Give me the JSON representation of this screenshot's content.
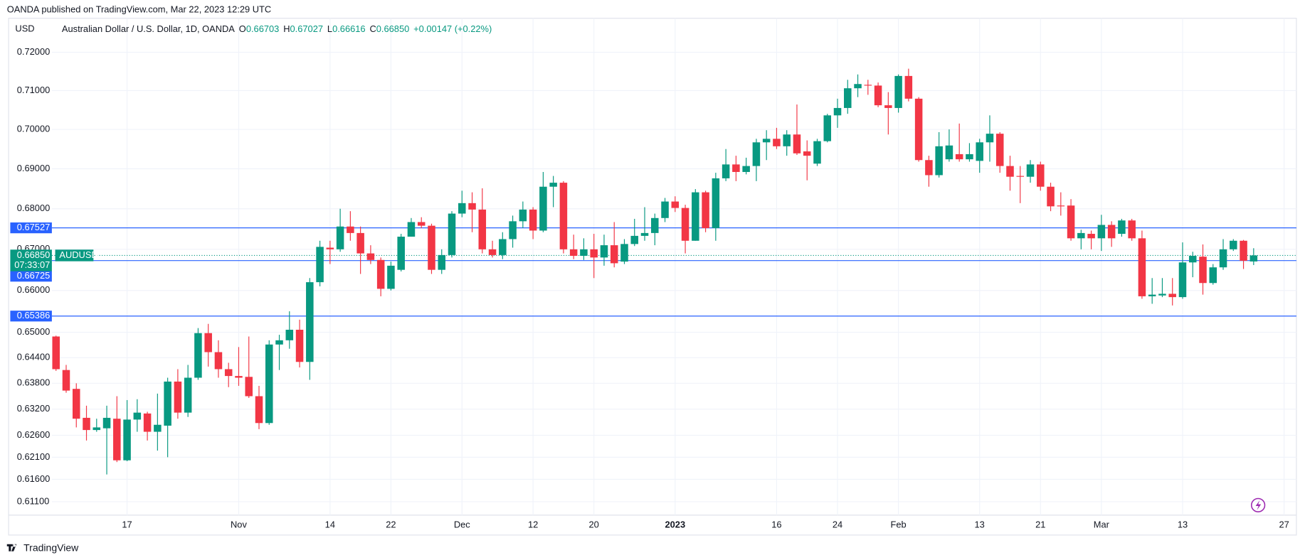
{
  "header": {
    "text": "OANDA published on TradingView.com, Mar 22, 2023 12:29 UTC"
  },
  "chart_data": {
    "type": "candlestick",
    "currency": "USD",
    "legend": {
      "title": "Australian Dollar / U.S. Dollar, 1D, OANDA",
      "ohlc": [
        {
          "key": "O",
          "value": "0.66703"
        },
        {
          "key": "H",
          "value": "0.67027"
        },
        {
          "key": "L",
          "value": "0.66616"
        },
        {
          "key": "C",
          "value": "0.66850"
        }
      ],
      "change": "+0.00147 (+0.22%)"
    },
    "categories": [
      null,
      null,
      null,
      null,
      null,
      null,
      null,
      "17",
      null,
      null,
      null,
      null,
      null,
      null,
      null,
      null,
      null,
      null,
      "Nov",
      null,
      null,
      null,
      null,
      null,
      null,
      null,
      null,
      "14",
      null,
      null,
      null,
      null,
      null,
      "22",
      null,
      null,
      null,
      null,
      null,
      null,
      "Dec",
      null,
      null,
      null,
      null,
      null,
      null,
      "12",
      null,
      null,
      null,
      null,
      null,
      "20",
      null,
      null,
      null,
      null,
      null,
      null,
      null,
      "2023",
      null,
      null,
      null,
      null,
      null,
      null,
      null,
      null,
      null,
      "16",
      null,
      null,
      null,
      null,
      null,
      "24",
      null,
      null,
      null,
      null,
      null,
      "Feb",
      null,
      null,
      null,
      null,
      null,
      null,
      null,
      "13",
      null,
      null,
      null,
      null,
      null,
      "21",
      null,
      null,
      null,
      null,
      null,
      "Mar",
      null,
      null,
      null,
      null,
      null,
      null,
      null,
      "13",
      null,
      null,
      null,
      null,
      null,
      null,
      null
    ],
    "future_categories": [
      null,
      null,
      "27"
    ],
    "open": [
      0.649,
      0.6411,
      0.6367,
      0.63,
      0.6272,
      0.6276,
      0.6298,
      0.6203,
      0.6296,
      0.631,
      0.6268,
      0.6282,
      0.6384,
      0.6312,
      0.6393,
      0.6498,
      0.6453,
      0.6413,
      0.6397,
      0.6395,
      0.635,
      0.6288,
      0.6471,
      0.6481,
      0.6506,
      0.643,
      0.662,
      0.6704,
      0.67,
      0.6756,
      0.674,
      0.669,
      0.6674,
      0.6604,
      0.665,
      0.6731,
      0.6767,
      0.6758,
      0.665,
      0.6686,
      0.6788,
      0.6814,
      0.6798,
      0.67,
      0.6686,
      0.6725,
      0.6769,
      0.6798,
      0.6746,
      0.6855,
      0.6865,
      0.67,
      0.6684,
      0.67,
      0.668,
      0.671,
      0.667,
      0.6713,
      0.6733,
      0.674,
      0.6777,
      0.6818,
      0.6802,
      0.6721,
      0.6841,
      0.6752,
      0.6876,
      0.6911,
      0.6892,
      0.6907,
      0.6967,
      0.6976,
      0.6957,
      0.6987,
      0.6944,
      0.6913,
      0.697,
      0.7036,
      0.7055,
      0.7106,
      0.7115,
      0.7113,
      0.7062,
      0.7055,
      0.7138,
      0.7079,
      0.6922,
      0.6884,
      0.6924,
      0.6937,
      0.6924,
      0.692,
      0.6967,
      0.6989,
      0.6907,
      0.6882,
      0.688,
      0.6911,
      0.6855,
      0.6808,
      0.6808,
      0.6727,
      0.6738,
      0.6727,
      0.676,
      0.6738,
      0.6771,
      0.6727,
      0.6586,
      0.6588,
      0.6592,
      0.6584,
      0.6668,
      0.6682,
      0.6618,
      0.6656,
      0.67,
      0.6721,
      0.66703
    ],
    "high": [
      0.6492,
      0.6423,
      0.638,
      0.6328,
      0.6298,
      0.6328,
      0.635,
      0.6341,
      0.6343,
      0.6314,
      0.6356,
      0.6393,
      0.6413,
      0.6423,
      0.651,
      0.652,
      0.6481,
      0.6428,
      0.6465,
      0.649,
      0.6374,
      0.6481,
      0.6494,
      0.655,
      0.653,
      0.663,
      0.6721,
      0.6721,
      0.68,
      0.6794,
      0.6756,
      0.671,
      0.668,
      0.667,
      0.6738,
      0.6777,
      0.6779,
      0.6763,
      0.67,
      0.6794,
      0.6845,
      0.6841,
      0.6851,
      0.6721,
      0.6742,
      0.6783,
      0.6818,
      0.6804,
      0.6892,
      0.6882,
      0.6869,
      0.6736,
      0.6727,
      0.6738,
      0.6736,
      0.6767,
      0.6725,
      0.6775,
      0.6804,
      0.6788,
      0.6827,
      0.6831,
      0.681,
      0.6849,
      0.6845,
      0.689,
      0.695,
      0.6933,
      0.6928,
      0.6976,
      0.6998,
      0.7004,
      0.6998,
      0.7064,
      0.6972,
      0.6976,
      0.704,
      0.7079,
      0.7128,
      0.7142,
      0.7128,
      0.7121,
      0.7096,
      0.7142,
      0.7157,
      0.7083,
      0.6933,
      0.6993,
      0.7,
      0.7015,
      0.6965,
      0.6976,
      0.7036,
      0.6993,
      0.6933,
      0.6907,
      0.6922,
      0.6918,
      0.6865,
      0.6841,
      0.6824,
      0.6748,
      0.6746,
      0.6785,
      0.6769,
      0.6775,
      0.6775,
      0.6746,
      0.663,
      0.663,
      0.663,
      0.6717,
      0.6694,
      0.6712,
      0.6664,
      0.6725,
      0.6725,
      0.6723,
      0.67027
    ],
    "low": [
      0.6409,
      0.6358,
      0.6278,
      0.6248,
      0.6268,
      0.6171,
      0.6199,
      0.6201,
      0.6268,
      0.6248,
      0.6225,
      0.621,
      0.6298,
      0.6302,
      0.6388,
      0.6419,
      0.6393,
      0.6371,
      0.6374,
      0.6346,
      0.6274,
      0.6284,
      0.6411,
      0.6461,
      0.6417,
      0.6388,
      0.661,
      0.6664,
      0.6694,
      0.6721,
      0.664,
      0.6664,
      0.6586,
      0.66,
      0.6646,
      0.6731,
      0.6752,
      0.664,
      0.664,
      0.668,
      0.6779,
      0.6742,
      0.669,
      0.668,
      0.6676,
      0.6704,
      0.6752,
      0.6725,
      0.6742,
      0.6804,
      0.669,
      0.6676,
      0.6674,
      0.663,
      0.666,
      0.6656,
      0.6664,
      0.6708,
      0.6721,
      0.671,
      0.6767,
      0.6792,
      0.669,
      0.6721,
      0.6742,
      0.6721,
      0.6869,
      0.6869,
      0.6886,
      0.6869,
      0.6922,
      0.695,
      0.6933,
      0.6935,
      0.6871,
      0.6907,
      0.6967,
      0.7004,
      0.704,
      0.7083,
      0.7089,
      0.7057,
      0.6987,
      0.7043,
      0.7072,
      0.6918,
      0.6855,
      0.6878,
      0.6918,
      0.6918,
      0.6918,
      0.689,
      0.6918,
      0.689,
      0.6845,
      0.6814,
      0.6865,
      0.6845,
      0.6794,
      0.6783,
      0.6721,
      0.67,
      0.67,
      0.6696,
      0.6706,
      0.6731,
      0.6721,
      0.658,
      0.6568,
      0.6584,
      0.6564,
      0.658,
      0.6632,
      0.659,
      0.6614,
      0.665,
      0.6696,
      0.6652,
      0.66616
    ],
    "close": [
      0.6413,
      0.6363,
      0.6298,
      0.6272,
      0.6278,
      0.63,
      0.6203,
      0.6296,
      0.6312,
      0.6268,
      0.6284,
      0.6384,
      0.6312,
      0.6393,
      0.6498,
      0.6453,
      0.6413,
      0.6397,
      0.6393,
      0.635,
      0.6288,
      0.6471,
      0.6481,
      0.6506,
      0.643,
      0.662,
      0.6706,
      0.67,
      0.6756,
      0.674,
      0.669,
      0.6674,
      0.6604,
      0.666,
      0.6731,
      0.6767,
      0.6758,
      0.665,
      0.6686,
      0.6788,
      0.6814,
      0.6798,
      0.67,
      0.6686,
      0.6725,
      0.6769,
      0.6798,
      0.6746,
      0.6855,
      0.6865,
      0.67,
      0.6684,
      0.67,
      0.668,
      0.671,
      0.6666,
      0.6713,
      0.6733,
      0.674,
      0.6777,
      0.6818,
      0.6802,
      0.6721,
      0.6841,
      0.6752,
      0.6876,
      0.6911,
      0.6892,
      0.6907,
      0.6967,
      0.6976,
      0.6957,
      0.6987,
      0.6939,
      0.6933,
      0.697,
      0.7036,
      0.7055,
      0.7106,
      0.7117,
      0.7113,
      0.7062,
      0.7055,
      0.7138,
      0.7079,
      0.6922,
      0.6884,
      0.6957,
      0.6959,
      0.6924,
      0.6937,
      0.6967,
      0.6989,
      0.6907,
      0.688,
      0.688,
      0.6911,
      0.6855,
      0.6806,
      0.6806,
      0.6727,
      0.674,
      0.6727,
      0.676,
      0.6727,
      0.6771,
      0.6727,
      0.6586,
      0.659,
      0.6592,
      0.6584,
      0.6668,
      0.6684,
      0.6618,
      0.6656,
      0.67,
      0.6721,
      0.6672,
      0.6685
    ],
    "up_color": "#089981",
    "down_color": "#f23645",
    "ylim": [
      0.608,
      0.729
    ],
    "log_scale": true,
    "grid": true,
    "yticks": [
      {
        "value": 0.72,
        "label": "0.72000"
      },
      {
        "value": 0.71,
        "label": "0.71000"
      },
      {
        "value": 0.7,
        "label": "0.70000"
      },
      {
        "value": 0.69,
        "label": "0.69000"
      },
      {
        "value": 0.68,
        "label": "0.68000"
      },
      {
        "value": 0.67,
        "label": "0.67000"
      },
      {
        "value": 0.66,
        "label": "0.66000"
      },
      {
        "value": 0.65,
        "label": "0.65000"
      },
      {
        "value": 0.644,
        "label": "0.64400"
      },
      {
        "value": 0.638,
        "label": "0.63800"
      },
      {
        "value": 0.632,
        "label": "0.63200"
      },
      {
        "value": 0.626,
        "label": "0.62600"
      },
      {
        "value": 0.621,
        "label": "0.62100"
      },
      {
        "value": 0.616,
        "label": "0.61600"
      },
      {
        "value": 0.611,
        "label": "0.61100"
      }
    ],
    "levels": [
      0.67527,
      0.66725,
      0.65386
    ],
    "level_color": "#2962ff",
    "last_price": {
      "value": 0.6685,
      "label": "0.66850",
      "countdown": "07:33:07",
      "symbol": "AUDUSD"
    }
  },
  "footer": {
    "brand": "TradingView"
  }
}
